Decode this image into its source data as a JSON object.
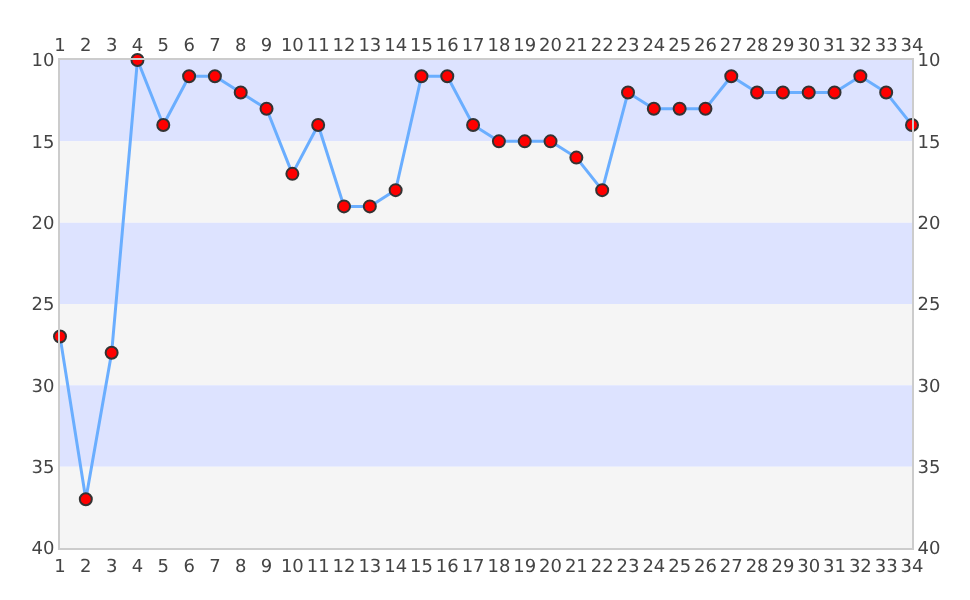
{
  "chart_data": {
    "type": "line",
    "x": [
      1,
      2,
      3,
      4,
      5,
      6,
      7,
      8,
      9,
      10,
      11,
      12,
      13,
      14,
      15,
      16,
      17,
      18,
      19,
      20,
      21,
      22,
      23,
      24,
      25,
      26,
      27,
      28,
      29,
      30,
      31,
      32,
      33,
      34
    ],
    "series": [
      {
        "color": "#6aaeff",
        "colors": [
          "#ff0000",
          "#ff0000",
          "#ff0000",
          "#ff0000",
          "#ff0000",
          "#ff0000",
          "#ff0000",
          "#ff0000",
          "#ff0000",
          "#ff0000",
          "#ff0000",
          "#ff0000",
          "#ff0000",
          "#ff0000",
          "#ff0000",
          "#ff0000",
          "#ff0000",
          "#ff0000",
          "#ff0000",
          "#ff0000",
          "#ff0000",
          "#ff0000",
          "#ff0000",
          "#ff0000",
          "#ff0000",
          "#ff0000",
          "#ff0000",
          "#ff0000",
          "#ff0000",
          "#ff0000",
          "#ff0000",
          "#ff0000",
          "#ff0000",
          "#ff0000"
        ],
        "values": [
          27,
          37,
          28,
          10,
          14,
          11,
          11,
          12,
          13,
          17,
          14,
          19,
          19,
          18,
          11,
          11,
          14,
          15,
          15,
          15,
          16,
          18,
          12,
          13,
          13,
          13,
          11,
          12,
          12,
          12,
          12,
          11,
          12,
          14
        ]
      }
    ],
    "marker": "circle",
    "line_style": "solid",
    "xlim": [
      1,
      34
    ],
    "xticks": [
      1,
      2,
      3,
      4,
      5,
      6,
      7,
      8,
      9,
      10,
      11,
      12,
      13,
      14,
      15,
      16,
      17,
      18,
      19,
      20,
      21,
      22,
      23,
      24,
      25,
      26,
      27,
      28,
      29,
      30,
      31,
      32,
      33,
      34
    ],
    "x2lim": [
      1,
      34
    ],
    "x2ticks": [
      1,
      2,
      3,
      4,
      5,
      6,
      7,
      8,
      9,
      10,
      11,
      12,
      13,
      14,
      15,
      16,
      17,
      18,
      19,
      20,
      21,
      22,
      23,
      24,
      25,
      26,
      27,
      28,
      29,
      30,
      31,
      32,
      33,
      34
    ],
    "ylim": [
      40,
      10
    ],
    "yticks": [
      10,
      15,
      20,
      25,
      30,
      35,
      40
    ],
    "y2lim": [
      40,
      10
    ],
    "y2ticks": [
      10,
      15,
      20,
      25,
      30,
      35,
      40
    ],
    "bands": [
      {
        "axis": "y",
        "from": 10,
        "to": 15,
        "color": "#dde3ff"
      },
      {
        "axis": "y",
        "from": 15,
        "to": 20,
        "color": "#f5f5f5"
      },
      {
        "axis": "y",
        "from": 20,
        "to": 25,
        "color": "#dde3ff"
      },
      {
        "axis": "y",
        "from": 25,
        "to": 30,
        "color": "#f5f5f5"
      },
      {
        "axis": "y",
        "from": 30,
        "to": 35,
        "color": "#dde3ff"
      },
      {
        "axis": "y",
        "from": 35,
        "to": 40,
        "color": "#f5f5f5"
      }
    ]
  }
}
